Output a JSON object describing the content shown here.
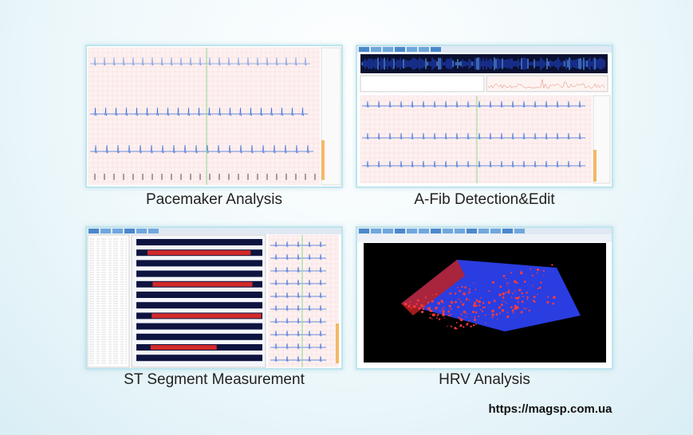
{
  "panels": [
    {
      "caption": "Pacemaker Analysis"
    },
    {
      "caption": "A-Fib Detection&Edit"
    },
    {
      "caption": "ST Segment Measurement"
    },
    {
      "caption": "HRV Analysis"
    }
  ],
  "footer": {
    "url": "https://magsp.com.ua"
  }
}
